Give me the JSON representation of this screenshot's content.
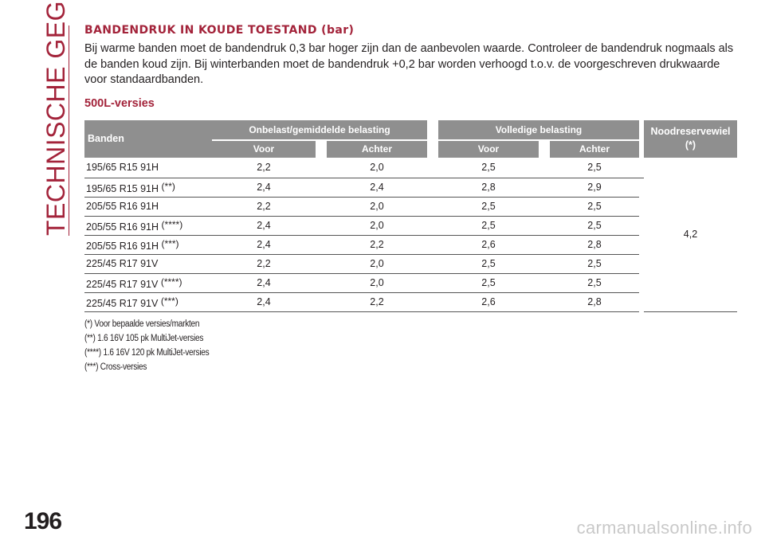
{
  "side_title": "TECHNISCHE GEGEVENS",
  "page_number": "196",
  "watermark": "carmanualsonline.info",
  "heading": "BANDENDRUK IN KOUDE TOESTAND (bar)",
  "intro": "Bij warme banden moet de bandendruk 0,3 bar hoger zijn dan de aanbevolen waarde. Controleer de bandendruk nogmaals als de banden koud zijn. Bij winterbanden moet de bandendruk +0,2 bar worden verhoogd t.o.v. de voorgeschreven drukwaarde voor standaardbanden.",
  "subheading": "500L-versies",
  "table": {
    "col_tyre": "Banden",
    "group_unloaded": "Onbelast/gemiddelde belasting",
    "group_loaded": "Volledige belasting",
    "col_spare_line1": "Noodreservewiel",
    "col_spare_line2": "(*)",
    "sub_front": "Voor",
    "sub_rear": "Achter",
    "spare_value": "4,2",
    "rows": [
      {
        "tyre": "195/65 R15 91H",
        "mark": "",
        "front_unloaded": "2,2",
        "rear_unloaded": "2,0",
        "front_loaded": "2,5",
        "rear_loaded": "2,5"
      },
      {
        "tyre": "195/65 R15 91H",
        "mark": "(**)",
        "front_unloaded": "2,4",
        "rear_unloaded": "2,4",
        "front_loaded": "2,8",
        "rear_loaded": "2,9"
      },
      {
        "tyre": "205/55 R16 91H",
        "mark": "",
        "front_unloaded": "2,2",
        "rear_unloaded": "2,0",
        "front_loaded": "2,5",
        "rear_loaded": "2,5"
      },
      {
        "tyre": "205/55 R16 91H",
        "mark": "(****)",
        "front_unloaded": "2,4",
        "rear_unloaded": "2,0",
        "front_loaded": "2,5",
        "rear_loaded": "2,5"
      },
      {
        "tyre": "205/55 R16 91H",
        "mark": "(***)",
        "front_unloaded": "2,4",
        "rear_unloaded": "2,2",
        "front_loaded": "2,6",
        "rear_loaded": "2,8"
      },
      {
        "tyre": "225/45 R17 91V",
        "mark": "",
        "front_unloaded": "2,2",
        "rear_unloaded": "2,0",
        "front_loaded": "2,5",
        "rear_loaded": "2,5"
      },
      {
        "tyre": "225/45 R17 91V",
        "mark": "(****)",
        "front_unloaded": "2,4",
        "rear_unloaded": "2,0",
        "front_loaded": "2,5",
        "rear_loaded": "2,5"
      },
      {
        "tyre": "225/45 R17 91V",
        "mark": "(***)",
        "front_unloaded": "2,4",
        "rear_unloaded": "2,2",
        "front_loaded": "2,6",
        "rear_loaded": "2,8"
      }
    ]
  },
  "footnotes": [
    "(*) Voor bepaalde versies/markten",
    "(**) 1.6 16V 105 pk MultiJet-versies",
    "(****) 1.6 16V 120 pk MultiJet-versies",
    "(***) Cross-versies"
  ],
  "colors": {
    "accent": "#a3233a",
    "header_bg": "#8f8f8f",
    "text": "#231f20"
  }
}
